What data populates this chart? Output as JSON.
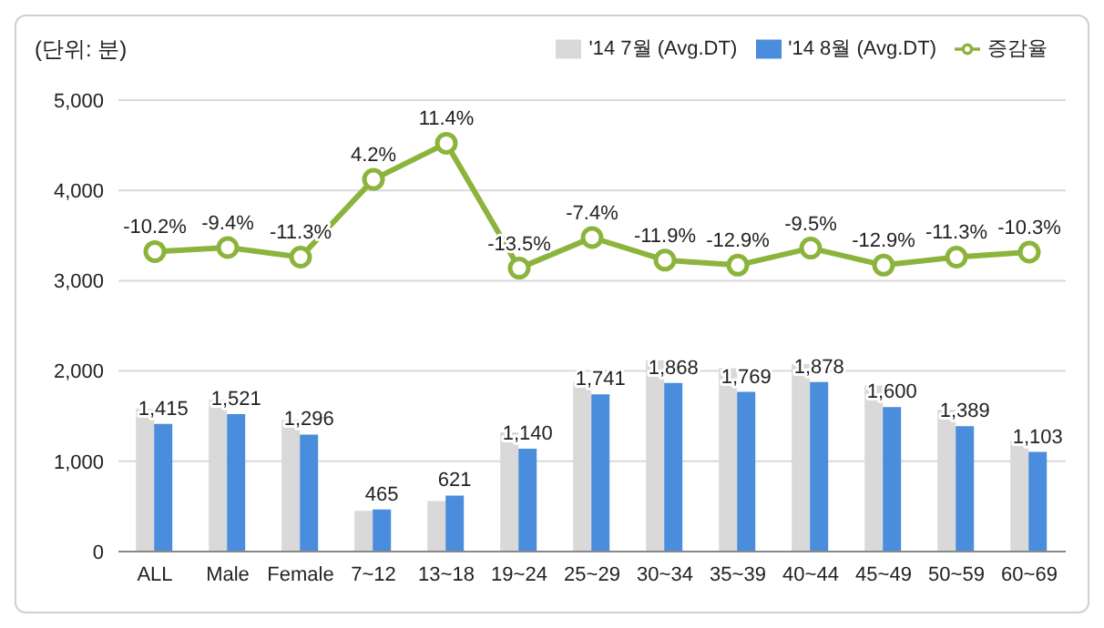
{
  "chart_data": {
    "type": "bar",
    "ylabel": "(단위: 분)",
    "categories": [
      "ALL",
      "Male",
      "Female",
      "7~12",
      "13~18",
      "19~24",
      "25~29",
      "30~34",
      "35~39",
      "40~44",
      "45~49",
      "50~59",
      "60~69"
    ],
    "series": [
      {
        "name": "'14 7월 (Avg.DT)",
        "color": "#d9d9d9",
        "values": [
          1580,
          1680,
          1460,
          450,
          560,
          1320,
          1880,
          2120,
          2030,
          2080,
          1840,
          1570,
          1230
        ]
      },
      {
        "name": "'14 8월 (Avg.DT)",
        "color": "#4a8ddc",
        "values": [
          1415,
          1521,
          1296,
          465,
          621,
          1140,
          1741,
          1868,
          1769,
          1878,
          1600,
          1389,
          1103
        ],
        "value_labels": [
          "1,415",
          "1,521",
          "1,296",
          "465",
          "621",
          "1,140",
          "1,741",
          "1,868",
          "1,769",
          "1,878",
          "1,600",
          "1,389",
          "1,103"
        ]
      },
      {
        "name": "증감율",
        "type": "line",
        "axis": "y2",
        "color": "#8cb43c",
        "marker": "circle",
        "values": [
          -10.2,
          -9.4,
          -11.3,
          4.2,
          11.4,
          -13.5,
          -7.4,
          -11.9,
          -12.9,
          -9.5,
          -12.9,
          -11.3,
          -10.3
        ],
        "value_labels": [
          "-10.2%",
          "-9.4%",
          "-11.3%",
          "4.2%",
          "11.4%",
          "-13.5%",
          "-7.4%",
          "-11.9%",
          "-12.9%",
          "-9.5%",
          "-12.9%",
          "-11.3%",
          "-10.3%"
        ]
      }
    ],
    "ylim": [
      0,
      5000
    ],
    "yticks": [
      0,
      {
        "value": 1000,
        "label": "1,000"
      },
      {
        "value": 2000,
        "label": "2,000"
      },
      {
        "value": 3000,
        "label": "3,000"
      },
      {
        "value": 4000,
        "label": "4,000"
      },
      {
        "value": 5000,
        "label": "5,000"
      }
    ],
    "y2lim": [
      -70,
      20
    ],
    "tick_labels": [
      "x",
      "y"
    ],
    "grid": "y",
    "legend": "top right"
  }
}
